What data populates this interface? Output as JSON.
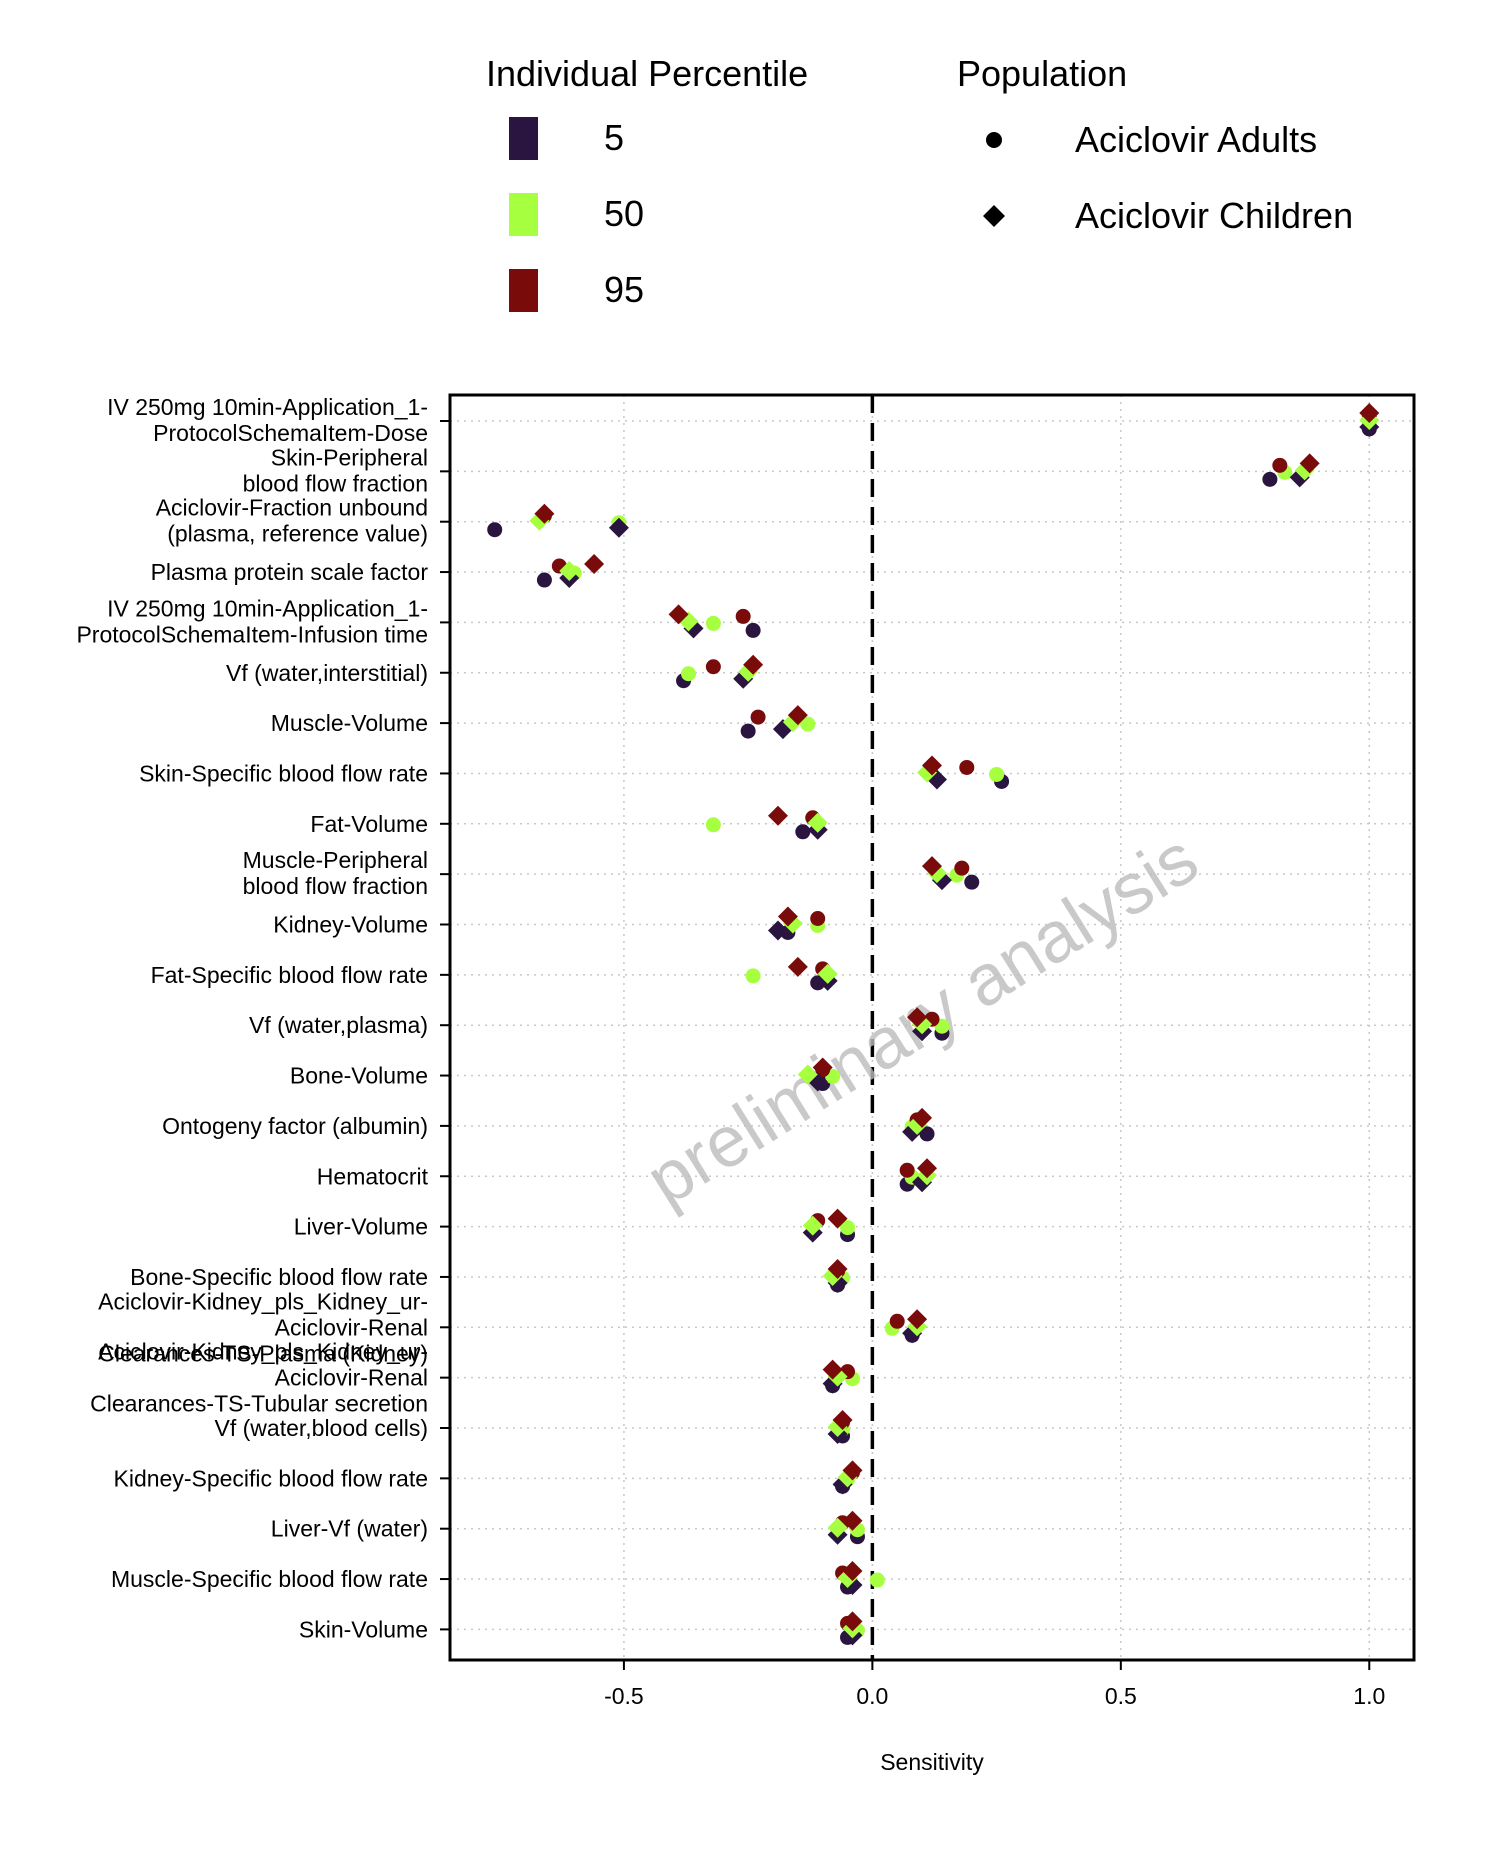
{
  "chart_data": {
    "type": "scatter",
    "xlabel": "Sensitivity",
    "xlim": [
      -0.85,
      1.09
    ],
    "x_ticks": [
      "-0.5",
      "0.0",
      "0.5",
      "1.0"
    ],
    "x_tick_values": [
      -0.5,
      0.0,
      0.5,
      1.0
    ],
    "grid": true,
    "reference_line_x": 0,
    "watermark": "preliminary analysis",
    "legend_percentile": {
      "title": "Individual Percentile",
      "entries": [
        {
          "label": "5",
          "color": "#2a1540"
        },
        {
          "label": "50",
          "color": "#a6ff3f"
        },
        {
          "label": "95",
          "color": "#7a0b0b"
        }
      ]
    },
    "legend_population": {
      "title": "Population",
      "entries": [
        {
          "label": "Aciclovir Adults",
          "shape": "circle"
        },
        {
          "label": "Aciclovir Children",
          "shape": "diamond"
        }
      ]
    },
    "parameters": [
      [
        "IV 250mg 10min-Application_1-",
        "ProtocolSchemaItem-Dose"
      ],
      [
        "Skin-Peripheral ",
        "blood flow fraction"
      ],
      [
        "Aciclovir-Fraction unbound ",
        "(plasma, reference value)"
      ],
      [
        "Plasma protein scale factor"
      ],
      [
        "IV 250mg 10min-Application_1-",
        "ProtocolSchemaItem-Infusion time"
      ],
      [
        "Vf (water,interstitial)"
      ],
      [
        "Muscle-Volume"
      ],
      [
        "Skin-Specific blood flow rate"
      ],
      [
        "Fat-Volume"
      ],
      [
        "Muscle-Peripheral ",
        "blood flow fraction"
      ],
      [
        "Kidney-Volume"
      ],
      [
        "Fat-Specific blood flow rate"
      ],
      [
        "Vf (water,plasma)"
      ],
      [
        "Bone-Volume"
      ],
      [
        "Ontogeny factor (albumin)"
      ],
      [
        "Hematocrit"
      ],
      [
        "Liver-Volume"
      ],
      [
        "Bone-Specific blood flow rate"
      ],
      [
        "Aciclovir-Kidney_pls_Kidney_ur-",
        "Aciclovir-Renal ",
        "Clearances-TS-Plasma (Kidney)"
      ],
      [
        "Aciclovir-Kidney_pls_Kidney_ur-",
        "Aciclovir-Renal ",
        "Clearances-TS-Tubular secretion"
      ],
      [
        "Vf (water,blood cells)"
      ],
      [
        "Kidney-Specific blood flow rate"
      ],
      [
        "Liver-Vf (water)"
      ],
      [
        "Muscle-Specific blood flow rate"
      ],
      [
        "Skin-Volume"
      ]
    ],
    "series": [
      {
        "percentile": "5",
        "population": "Aciclovir Adults",
        "shape": "circle",
        "color": "#2a1540",
        "values": [
          1.0,
          0.8,
          -0.76,
          -0.66,
          -0.24,
          -0.38,
          -0.25,
          0.26,
          -0.14,
          0.2,
          -0.17,
          -0.11,
          0.14,
          -0.1,
          0.11,
          0.07,
          -0.05,
          -0.07,
          0.08,
          -0.08,
          -0.06,
          -0.06,
          -0.03,
          -0.05,
          -0.05
        ]
      },
      {
        "percentile": "50",
        "population": "Aciclovir Adults",
        "shape": "circle",
        "color": "#a6ff3f",
        "values": [
          1.0,
          0.83,
          -0.51,
          -0.6,
          -0.32,
          -0.37,
          -0.13,
          0.25,
          -0.32,
          0.17,
          -0.11,
          -0.24,
          0.14,
          -0.08,
          0.08,
          0.08,
          -0.05,
          -0.06,
          0.04,
          -0.04,
          -0.06,
          -0.05,
          -0.03,
          0.01,
          -0.03
        ]
      },
      {
        "percentile": "95",
        "population": "Aciclovir Adults",
        "shape": "circle",
        "color": "#7a0b0b",
        "values": [
          1.0,
          0.82,
          -0.66,
          -0.63,
          -0.26,
          -0.32,
          -0.23,
          0.19,
          -0.12,
          0.18,
          -0.11,
          -0.1,
          0.12,
          -0.1,
          0.09,
          0.07,
          -0.11,
          -0.07,
          0.05,
          -0.05,
          -0.06,
          -0.04,
          -0.06,
          -0.06,
          -0.05
        ]
      },
      {
        "percentile": "5",
        "population": "Aciclovir Children",
        "shape": "diamond",
        "color": "#2a1540",
        "values": [
          1.0,
          0.86,
          -0.51,
          -0.61,
          -0.36,
          -0.26,
          -0.18,
          0.13,
          -0.11,
          0.14,
          -0.19,
          -0.09,
          0.1,
          -0.11,
          0.08,
          0.1,
          -0.12,
          -0.07,
          0.08,
          -0.08,
          -0.07,
          -0.06,
          -0.07,
          -0.04,
          -0.04
        ]
      },
      {
        "percentile": "50",
        "population": "Aciclovir Children",
        "shape": "diamond",
        "color": "#a6ff3f",
        "values": [
          1.0,
          0.87,
          -0.67,
          -0.61,
          -0.37,
          -0.25,
          -0.16,
          0.11,
          -0.11,
          0.13,
          -0.16,
          -0.09,
          0.1,
          -0.13,
          0.09,
          0.11,
          -0.12,
          -0.08,
          0.09,
          -0.07,
          -0.07,
          -0.05,
          -0.07,
          -0.05,
          -0.04
        ]
      },
      {
        "percentile": "95",
        "population": "Aciclovir Children",
        "shape": "diamond",
        "color": "#7a0b0b",
        "values": [
          1.0,
          0.88,
          -0.66,
          -0.56,
          -0.39,
          -0.24,
          -0.15,
          0.12,
          -0.19,
          0.12,
          -0.17,
          -0.15,
          0.09,
          -0.1,
          0.1,
          0.11,
          -0.07,
          -0.07,
          0.09,
          -0.08,
          -0.06,
          -0.04,
          -0.04,
          -0.04,
          -0.04
        ]
      }
    ]
  }
}
